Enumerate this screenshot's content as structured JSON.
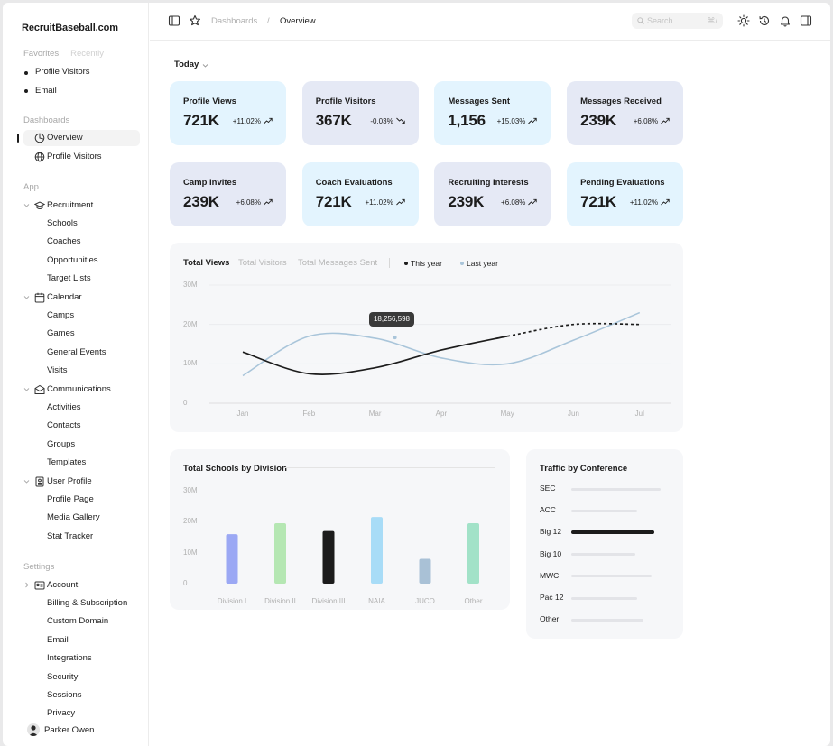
{
  "brand": "RecruitBaseball.com",
  "sidebar": {
    "tabs": [
      "Favorites",
      "Recently"
    ],
    "favorites": [
      "Profile Visitors",
      "Email"
    ],
    "dashboards_heading": "Dashboards",
    "dashboards": [
      {
        "label": "Overview",
        "icon": "pie-chart-icon"
      },
      {
        "label": "Profile Visitors",
        "icon": "globe-icon"
      }
    ],
    "app_heading": "App",
    "app_groups": [
      {
        "label": "Recruitment",
        "icon": "graduation-cap-icon",
        "children": [
          "Schools",
          "Coaches",
          "Opportunities",
          "Target Lists"
        ]
      },
      {
        "label": "Calendar",
        "icon": "calendar-icon",
        "children": [
          "Camps",
          "Games",
          "General Events",
          "Visits"
        ]
      },
      {
        "label": "Communications",
        "icon": "envelope-icon",
        "children": [
          "Activities",
          "Contacts",
          "Groups",
          "Templates"
        ]
      },
      {
        "label": "User Profile",
        "icon": "id-card-icon",
        "children": [
          "Profile Page",
          "Media Gallery",
          "Stat Tracker"
        ]
      }
    ],
    "settings_heading": "Settings",
    "settings_group": {
      "label": "Account",
      "icon": "account-card-icon",
      "children": [
        "Billing & Subscription",
        "Custom Domain",
        "Email",
        "Integrations",
        "Security",
        "Sessions",
        "Privacy"
      ]
    },
    "user": "Parker Owen"
  },
  "header": {
    "breadcrumb": [
      "Dashboards",
      "/",
      "Overview"
    ],
    "search_placeholder": "Search",
    "search_shortcut": "⌘/"
  },
  "filter": {
    "label": "Today"
  },
  "stats": [
    {
      "title": "Profile Views",
      "value": "721K",
      "delta": "+11.02%",
      "trend": "up",
      "color": "#e3f4fe"
    },
    {
      "title": "Profile Visitors",
      "value": "367K",
      "delta": "-0.03%",
      "trend": "down",
      "color": "#e5e9f5"
    },
    {
      "title": "Messages Sent",
      "value": "1,156",
      "delta": "+15.03%",
      "trend": "up",
      "color": "#e3f4fe"
    },
    {
      "title": "Messages Received",
      "value": "239K",
      "delta": "+6.08%",
      "trend": "up",
      "color": "#e5e9f5"
    },
    {
      "title": "Camp Invites",
      "value": "239K",
      "delta": "+6.08%",
      "trend": "up",
      "color": "#e5e9f5"
    },
    {
      "title": "Coach Evaluations",
      "value": "721K",
      "delta": "+11.02%",
      "trend": "up",
      "color": "#e3f4fe"
    },
    {
      "title": "Recruiting Interests",
      "value": "239K",
      "delta": "+6.08%",
      "trend": "up",
      "color": "#e5e9f5"
    },
    {
      "title": "Pending Evaluations",
      "value": "721K",
      "delta": "+11.02%",
      "trend": "up",
      "color": "#e3f4fe"
    }
  ],
  "line_panel": {
    "tabs": [
      "Total Views",
      "Total Visitors",
      "Total Messages Sent"
    ],
    "legend": [
      {
        "label": "This year",
        "color": "#1c1c1c"
      },
      {
        "label": "Last year",
        "color": "#a9c5da"
      }
    ],
    "tooltip": "18,256,598"
  },
  "bar_panel": {
    "title": "Total Schools by Division"
  },
  "conference_panel": {
    "title": "Traffic by Conference",
    "rows": [
      {
        "label": "SEC",
        "value": 0.92,
        "active": false
      },
      {
        "label": "ACC",
        "value": 0.68,
        "active": false
      },
      {
        "label": "Big 12",
        "value": 0.85,
        "active": true
      },
      {
        "label": "Big 10",
        "value": 0.66,
        "active": false
      },
      {
        "label": "MWC",
        "value": 0.82,
        "active": false
      },
      {
        "label": "Pac 12",
        "value": 0.68,
        "active": false
      },
      {
        "label": "Other",
        "value": 0.74,
        "active": false
      }
    ]
  },
  "chart_data": [
    {
      "type": "line",
      "categories": [
        "Jan",
        "Feb",
        "Mar",
        "Apr",
        "May",
        "Jun",
        "Jul"
      ],
      "ylim": [
        0,
        30000000
      ],
      "yticks": [
        "0",
        "10M",
        "20M",
        "30M"
      ],
      "series": [
        {
          "name": "This year",
          "values": [
            13000000,
            7500000,
            9000000,
            13500000,
            17000000,
            20000000,
            20000000
          ],
          "color": "#1c1c1c"
        },
        {
          "name": "Last year",
          "values": [
            7000000,
            17000000,
            16500000,
            11500000,
            10000000,
            16000000,
            23000000
          ],
          "color": "#a9c5da"
        }
      ],
      "grid": true
    },
    {
      "type": "bar",
      "categories": [
        "Division I",
        "Division II",
        "Division III",
        "NAIA",
        "JUCO",
        "Other"
      ],
      "values": [
        16000000,
        19500000,
        17000000,
        21500000,
        8000000,
        19500000
      ],
      "colors": [
        "#9ba8f4",
        "#b5e7b3",
        "#1c1c1c",
        "#a8dcf7",
        "#a9c1d6",
        "#a2e2c8"
      ],
      "ylim": [
        0,
        30000000
      ],
      "yticks": [
        "0",
        "10M",
        "20M",
        "30M"
      ]
    }
  ]
}
